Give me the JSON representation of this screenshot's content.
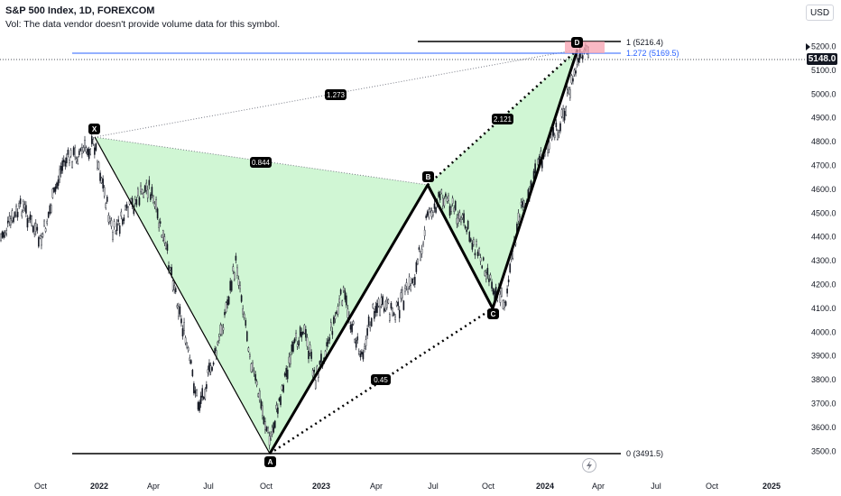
{
  "header": {
    "title": "S&P 500 Index, 1D, FOREXCOM",
    "volume_note": "Vol: The data vendor doesn't provide volume data for this symbol."
  },
  "currency_button": "USD",
  "last_price": "5148.0",
  "price_axis": {
    "ticks": [
      "5200.0",
      "5100.0",
      "5000.0",
      "4900.0",
      "4800.0",
      "4700.0",
      "4600.0",
      "4500.0",
      "4400.0",
      "4300.0",
      "4200.0",
      "4100.0",
      "4000.0",
      "3900.0",
      "3800.0",
      "3700.0",
      "3600.0",
      "3500.0"
    ]
  },
  "time_axis": {
    "ticks": [
      "Oct",
      "2022",
      "Apr",
      "Jul",
      "Oct",
      "2023",
      "Apr",
      "Jul",
      "Oct",
      "2024",
      "Apr",
      "Jul",
      "Oct",
      "2025"
    ]
  },
  "pattern": {
    "points": {
      "X": "X",
      "A": "A",
      "B": "B",
      "C": "C",
      "D": "D"
    },
    "ratios": {
      "xb": "0.844",
      "ac": "0.45",
      "bd": "2.121",
      "xd": "1.273"
    },
    "levels": {
      "top": "1 (5216.4)",
      "fib": "1.272 (5169.5)",
      "bottom": "0 (3491.5)"
    }
  },
  "colors": {
    "pattern_fill": "#c8f5cc",
    "line": "#000000",
    "fib_line": "#2962ff",
    "prz_box": "#f7a1b0"
  },
  "icons": {
    "replay": "lightning-icon"
  }
}
